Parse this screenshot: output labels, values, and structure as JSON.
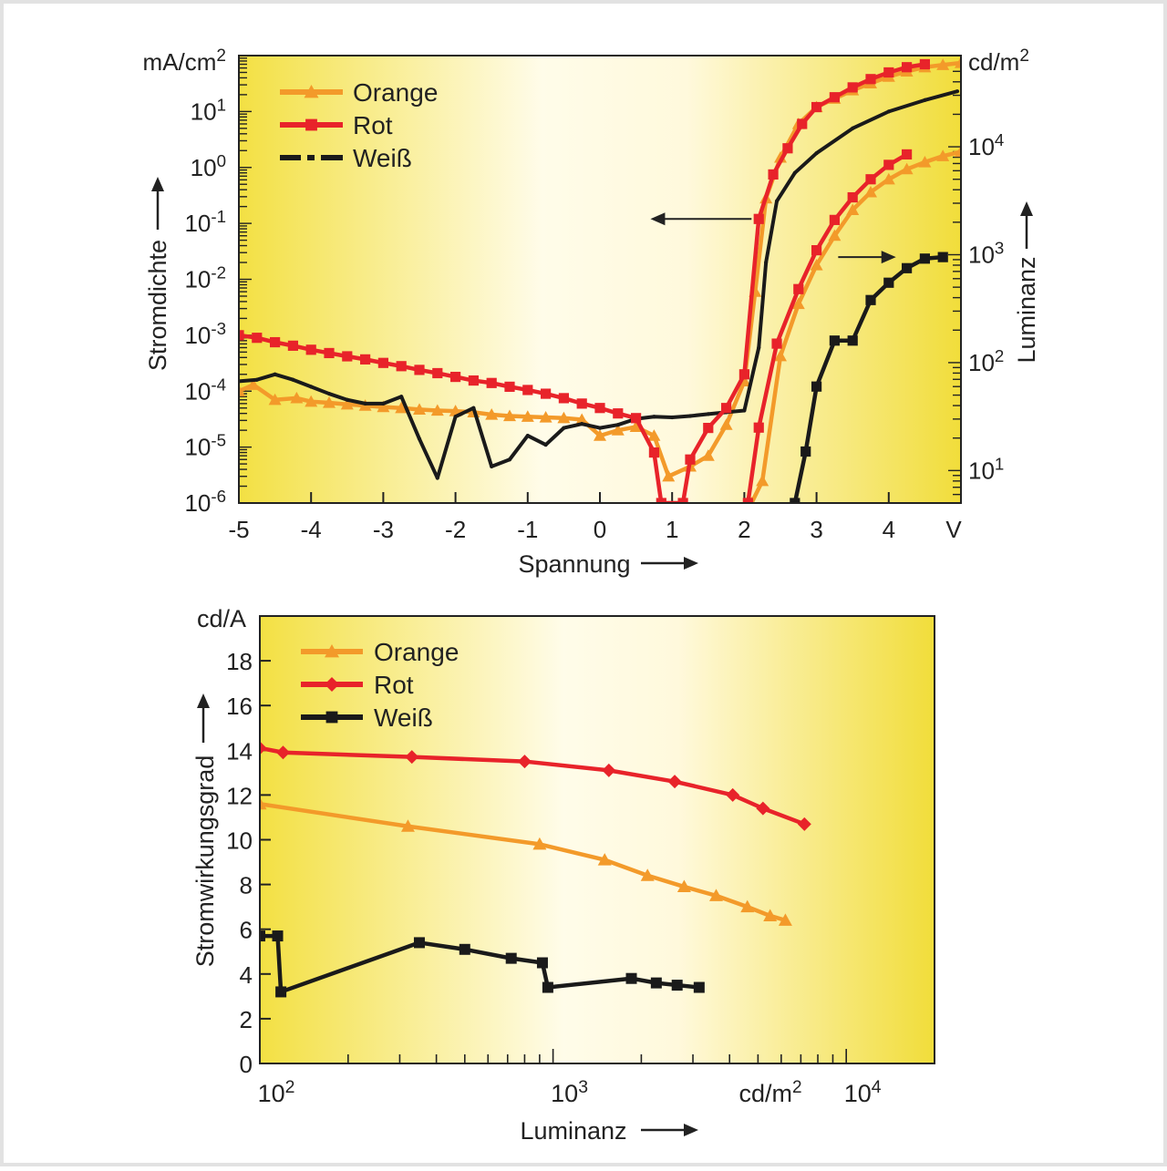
{
  "chart_data": [
    {
      "type": "line",
      "x_range": [
        -5,
        5
      ],
      "left_axis": {
        "scale": "log",
        "unit": "mA/cm",
        "unit_sup": "2",
        "label": "Stromdichte",
        "range": [
          1e-06,
          100
        ],
        "ticks": [
          {
            "base": "10",
            "exp": "-6",
            "value": 1e-06
          },
          {
            "base": "10",
            "exp": "-5",
            "value": 1e-05
          },
          {
            "base": "10",
            "exp": "-4",
            "value": 0.0001
          },
          {
            "base": "10",
            "exp": "-3",
            "value": 0.001
          },
          {
            "base": "10",
            "exp": "-2",
            "value": 0.01
          },
          {
            "base": "10",
            "exp": "-1",
            "value": 0.1
          },
          {
            "base": "10",
            "exp": "0",
            "value": 1
          },
          {
            "base": "10",
            "exp": "1",
            "value": 10
          }
        ]
      },
      "right_axis": {
        "scale": "log",
        "unit": "cd/m",
        "unit_sup": "2",
        "label": "Luminanz",
        "range": [
          5,
          70000
        ],
        "ticks": [
          {
            "base": "10",
            "exp": "1",
            "value": 10
          },
          {
            "base": "10",
            "exp": "2",
            "value": 100
          },
          {
            "base": "10",
            "exp": "3",
            "value": 1000
          },
          {
            "base": "10",
            "exp": "4",
            "value": 10000
          }
        ]
      },
      "x_axis": {
        "label": "Spannung",
        "ticks": [
          {
            "text": "-5",
            "value": -5
          },
          {
            "text": "-4",
            "value": -4
          },
          {
            "text": "-3",
            "value": -3
          },
          {
            "text": "-2",
            "value": -2
          },
          {
            "text": "-1",
            "value": -1
          },
          {
            "text": "0",
            "value": 0
          },
          {
            "text": "1",
            "value": 1
          },
          {
            "text": "2",
            "value": 2
          },
          {
            "text": "3",
            "value": 3
          },
          {
            "text": "4",
            "value": 4
          }
        ],
        "unit_label": "V"
      },
      "legend": {
        "placement": "top-left",
        "entries": [
          {
            "name": "Orange",
            "color": "#f39a2a",
            "marker": "triangle"
          },
          {
            "name": "Rot",
            "color": "#e8232a",
            "marker": "square"
          },
          {
            "name": "Weiß",
            "color": "#1a1a1a",
            "marker": "dot-dash"
          }
        ]
      },
      "series": [
        {
          "name": "Orange",
          "axis": "current",
          "color": "#f39a2a",
          "points": [
            [
              -5,
              0.0001
            ],
            [
              -4.8,
              0.00013
            ],
            [
              -4.5,
              7e-05
            ],
            [
              -4.2,
              7.5e-05
            ],
            [
              -4,
              6.5e-05
            ],
            [
              -3.75,
              6.2e-05
            ],
            [
              -3.5,
              5.8e-05
            ],
            [
              -3.25,
              5.5e-05
            ],
            [
              -3,
              5.2e-05
            ],
            [
              -2.75,
              5e-05
            ],
            [
              -2.5,
              4.7e-05
            ],
            [
              -2.25,
              4.5e-05
            ],
            [
              -2,
              4.4e-05
            ],
            [
              -1.75,
              4.2e-05
            ],
            [
              -1.5,
              3.8e-05
            ],
            [
              -1.25,
              3.6e-05
            ],
            [
              -1,
              3.5e-05
            ],
            [
              -0.75,
              3.4e-05
            ],
            [
              -0.5,
              3.3e-05
            ],
            [
              -0.25,
              3.1e-05
            ],
            [
              0,
              1.6e-05
            ],
            [
              0.25,
              2e-05
            ],
            [
              0.5,
              2.3e-05
            ],
            [
              0.75,
              1.6e-05
            ],
            [
              0.95,
              3e-06
            ],
            [
              1.25,
              4.5e-06
            ],
            [
              1.5,
              7e-06
            ],
            [
              1.75,
              2.5e-05
            ],
            [
              2,
              0.00015
            ],
            [
              2.15,
              0.006
            ],
            [
              2.3,
              0.28
            ],
            [
              2.5,
              1.5
            ],
            [
              2.75,
              6
            ],
            [
              3,
              12
            ],
            [
              3.25,
              17
            ],
            [
              3.5,
              24
            ],
            [
              3.75,
              32
            ],
            [
              4,
              42
            ],
            [
              4.25,
              52
            ],
            [
              4.5,
              62
            ],
            [
              4.75,
              68
            ],
            [
              5,
              74
            ]
          ]
        },
        {
          "name": "Rot",
          "axis": "current",
          "color": "#e8232a",
          "points": [
            [
              -5,
              0.001
            ],
            [
              -4.75,
              0.0009
            ],
            [
              -4.5,
              0.00075
            ],
            [
              -4.25,
              0.00065
            ],
            [
              -4,
              0.00055
            ],
            [
              -3.75,
              0.00048
            ],
            [
              -3.5,
              0.00042
            ],
            [
              -3.25,
              0.00037
            ],
            [
              -3,
              0.00032
            ],
            [
              -2.75,
              0.00028
            ],
            [
              -2.5,
              0.00024
            ],
            [
              -2.25,
              0.00021
            ],
            [
              -2,
              0.00018
            ],
            [
              -1.75,
              0.000155
            ],
            [
              -1.5,
              0.00014
            ],
            [
              -1.25,
              0.00012
            ],
            [
              -1,
              0.000105
            ],
            [
              -0.75,
              9e-05
            ],
            [
              -0.5,
              7.5e-05
            ],
            [
              -0.25,
              6e-05
            ],
            [
              0,
              5e-05
            ],
            [
              0.25,
              4e-05
            ],
            [
              0.5,
              3.3e-05
            ],
            [
              0.75,
              8e-06
            ],
            [
              0.85,
              1e-06
            ],
            [
              1.15,
              1e-06
            ],
            [
              1.25,
              6e-06
            ],
            [
              1.5,
              2.2e-05
            ],
            [
              1.75,
              5e-05
            ],
            [
              2,
              0.0002
            ],
            [
              2.2,
              0.12
            ],
            [
              2.4,
              0.75
            ],
            [
              2.6,
              2.2
            ],
            [
              2.8,
              6
            ],
            [
              3,
              12
            ],
            [
              3.25,
              18
            ],
            [
              3.5,
              27
            ],
            [
              3.75,
              38
            ],
            [
              4,
              50
            ],
            [
              4.25,
              62
            ],
            [
              4.5,
              70
            ]
          ]
        },
        {
          "name": "Weiß",
          "axis": "current",
          "color": "#1a1a1a",
          "points": [
            [
              -5,
              0.00015
            ],
            [
              -4.75,
              0.00016
            ],
            [
              -4.5,
              0.0002
            ],
            [
              -4.25,
              0.00016
            ],
            [
              -4,
              0.00012
            ],
            [
              -3.75,
              9e-05
            ],
            [
              -3.5,
              7e-05
            ],
            [
              -3.25,
              6e-05
            ],
            [
              -3,
              6e-05
            ],
            [
              -2.75,
              8e-05
            ],
            [
              -2.5,
              1.4e-05
            ],
            [
              -2.25,
              2.8e-06
            ],
            [
              -2,
              3.5e-05
            ],
            [
              -1.75,
              5e-05
            ],
            [
              -1.5,
              4.5e-06
            ],
            [
              -1.25,
              6e-06
            ],
            [
              -1,
              1.6e-05
            ],
            [
              -0.75,
              1.1e-05
            ],
            [
              -0.5,
              2.2e-05
            ],
            [
              -0.25,
              2.6e-05
            ],
            [
              0,
              2.2e-05
            ],
            [
              0.25,
              2.5e-05
            ],
            [
              0.5,
              3.2e-05
            ],
            [
              0.75,
              3.5e-05
            ],
            [
              1,
              3.4e-05
            ],
            [
              1.25,
              3.6e-05
            ],
            [
              1.5,
              3.9e-05
            ],
            [
              1.75,
              4.2e-05
            ],
            [
              2,
              4.5e-05
            ],
            [
              2.2,
              0.0006
            ],
            [
              2.3,
              0.02
            ],
            [
              2.45,
              0.25
            ],
            [
              2.7,
              0.8
            ],
            [
              3,
              1.8
            ],
            [
              3.5,
              5
            ],
            [
              4,
              10
            ],
            [
              4.5,
              16
            ],
            [
              4.95,
              23
            ]
          ]
        },
        {
          "name": "Orange",
          "axis": "luminance",
          "color": "#f39a2a",
          "points": [
            [
              2.1,
              5
            ],
            [
              2.25,
              8
            ],
            [
              2.5,
              115
            ],
            [
              2.75,
              350
            ],
            [
              3,
              800
            ],
            [
              3.25,
              1500
            ],
            [
              3.5,
              2600
            ],
            [
              3.75,
              3800
            ],
            [
              4,
              5000
            ],
            [
              4.25,
              6200
            ],
            [
              4.5,
              7200
            ],
            [
              4.75,
              8200
            ],
            [
              5,
              9000
            ]
          ]
        },
        {
          "name": "Rot",
          "axis": "luminance",
          "color": "#e8232a",
          "points": [
            [
              2.05,
              5
            ],
            [
              2.2,
              25
            ],
            [
              2.45,
              150
            ],
            [
              2.75,
              480
            ],
            [
              3,
              1100
            ],
            [
              3.25,
              2100
            ],
            [
              3.5,
              3400
            ],
            [
              3.75,
              5000
            ],
            [
              4,
              6800
            ],
            [
              4.25,
              8500
            ]
          ]
        },
        {
          "name": "Weiß",
          "axis": "luminance",
          "color": "#1a1a1a",
          "points": [
            [
              2.7,
              5
            ],
            [
              2.85,
              15
            ],
            [
              3,
              60
            ],
            [
              3.25,
              160
            ],
            [
              3.5,
              160
            ],
            [
              3.75,
              380
            ],
            [
              4,
              550
            ],
            [
              4.25,
              750
            ],
            [
              4.5,
              920
            ],
            [
              4.75,
              950
            ]
          ]
        }
      ],
      "arrows": [
        {
          "direction": "left",
          "from_x": 2.1,
          "to_x": 0.7,
          "at_y": 0.12
        },
        {
          "direction": "right",
          "from_x": 3.3,
          "to_x": 4.1,
          "at_lum": 950
        }
      ]
    },
    {
      "type": "line",
      "x_axis": {
        "scale": "log",
        "label": "Luminanz",
        "unit_label": "cd/m",
        "unit_sup": "2",
        "range": [
          100,
          20000
        ],
        "ticks": [
          {
            "base": "10",
            "exp": "2",
            "value": 100
          },
          {
            "base": "10",
            "exp": "3",
            "value": 1000
          },
          {
            "base": "10",
            "exp": "4",
            "value": 10000
          }
        ]
      },
      "y_axis": {
        "label": "Stromwirkungsgrad",
        "unit": "cd/A",
        "range": [
          0,
          20
        ],
        "ticks": [
          "0",
          "2",
          "4",
          "6",
          "8",
          "10",
          "12",
          "14",
          "16",
          "18"
        ]
      },
      "legend": {
        "placement": "top-left",
        "entries": [
          {
            "name": "Orange",
            "color": "#f39a2a",
            "marker": "triangle"
          },
          {
            "name": "Rot",
            "color": "#e8232a",
            "marker": "diamond"
          },
          {
            "name": "Weiß",
            "color": "#1a1a1a",
            "marker": "square"
          }
        ]
      },
      "series": [
        {
          "name": "Orange",
          "color": "#f39a2a",
          "marker": "triangle",
          "points": [
            [
              100,
              11.6
            ],
            [
              320,
              10.6
            ],
            [
              900,
              9.8
            ],
            [
              1500,
              9.1
            ],
            [
              2100,
              8.4
            ],
            [
              2800,
              7.9
            ],
            [
              3600,
              7.5
            ],
            [
              4600,
              7.0
            ],
            [
              5500,
              6.6
            ],
            [
              6200,
              6.4
            ]
          ]
        },
        {
          "name": "Rot",
          "color": "#e8232a",
          "marker": "diamond",
          "points": [
            [
              100,
              14.1
            ],
            [
              120,
              13.9
            ],
            [
              330,
              13.7
            ],
            [
              800,
              13.5
            ],
            [
              1550,
              13.1
            ],
            [
              2600,
              12.6
            ],
            [
              4100,
              12.0
            ],
            [
              5200,
              11.4
            ],
            [
              7200,
              10.7
            ]
          ]
        },
        {
          "name": "Weiß",
          "color": "#1a1a1a",
          "marker": "square",
          "points": [
            [
              100,
              5.7
            ],
            [
              115,
              5.7
            ],
            [
              118,
              3.2
            ],
            [
              350,
              5.4
            ],
            [
              500,
              5.1
            ],
            [
              720,
              4.7
            ],
            [
              920,
              4.5
            ],
            [
              960,
              3.4
            ],
            [
              1850,
              3.8
            ],
            [
              2250,
              3.6
            ],
            [
              2650,
              3.5
            ],
            [
              3150,
              3.4
            ]
          ]
        }
      ]
    }
  ]
}
